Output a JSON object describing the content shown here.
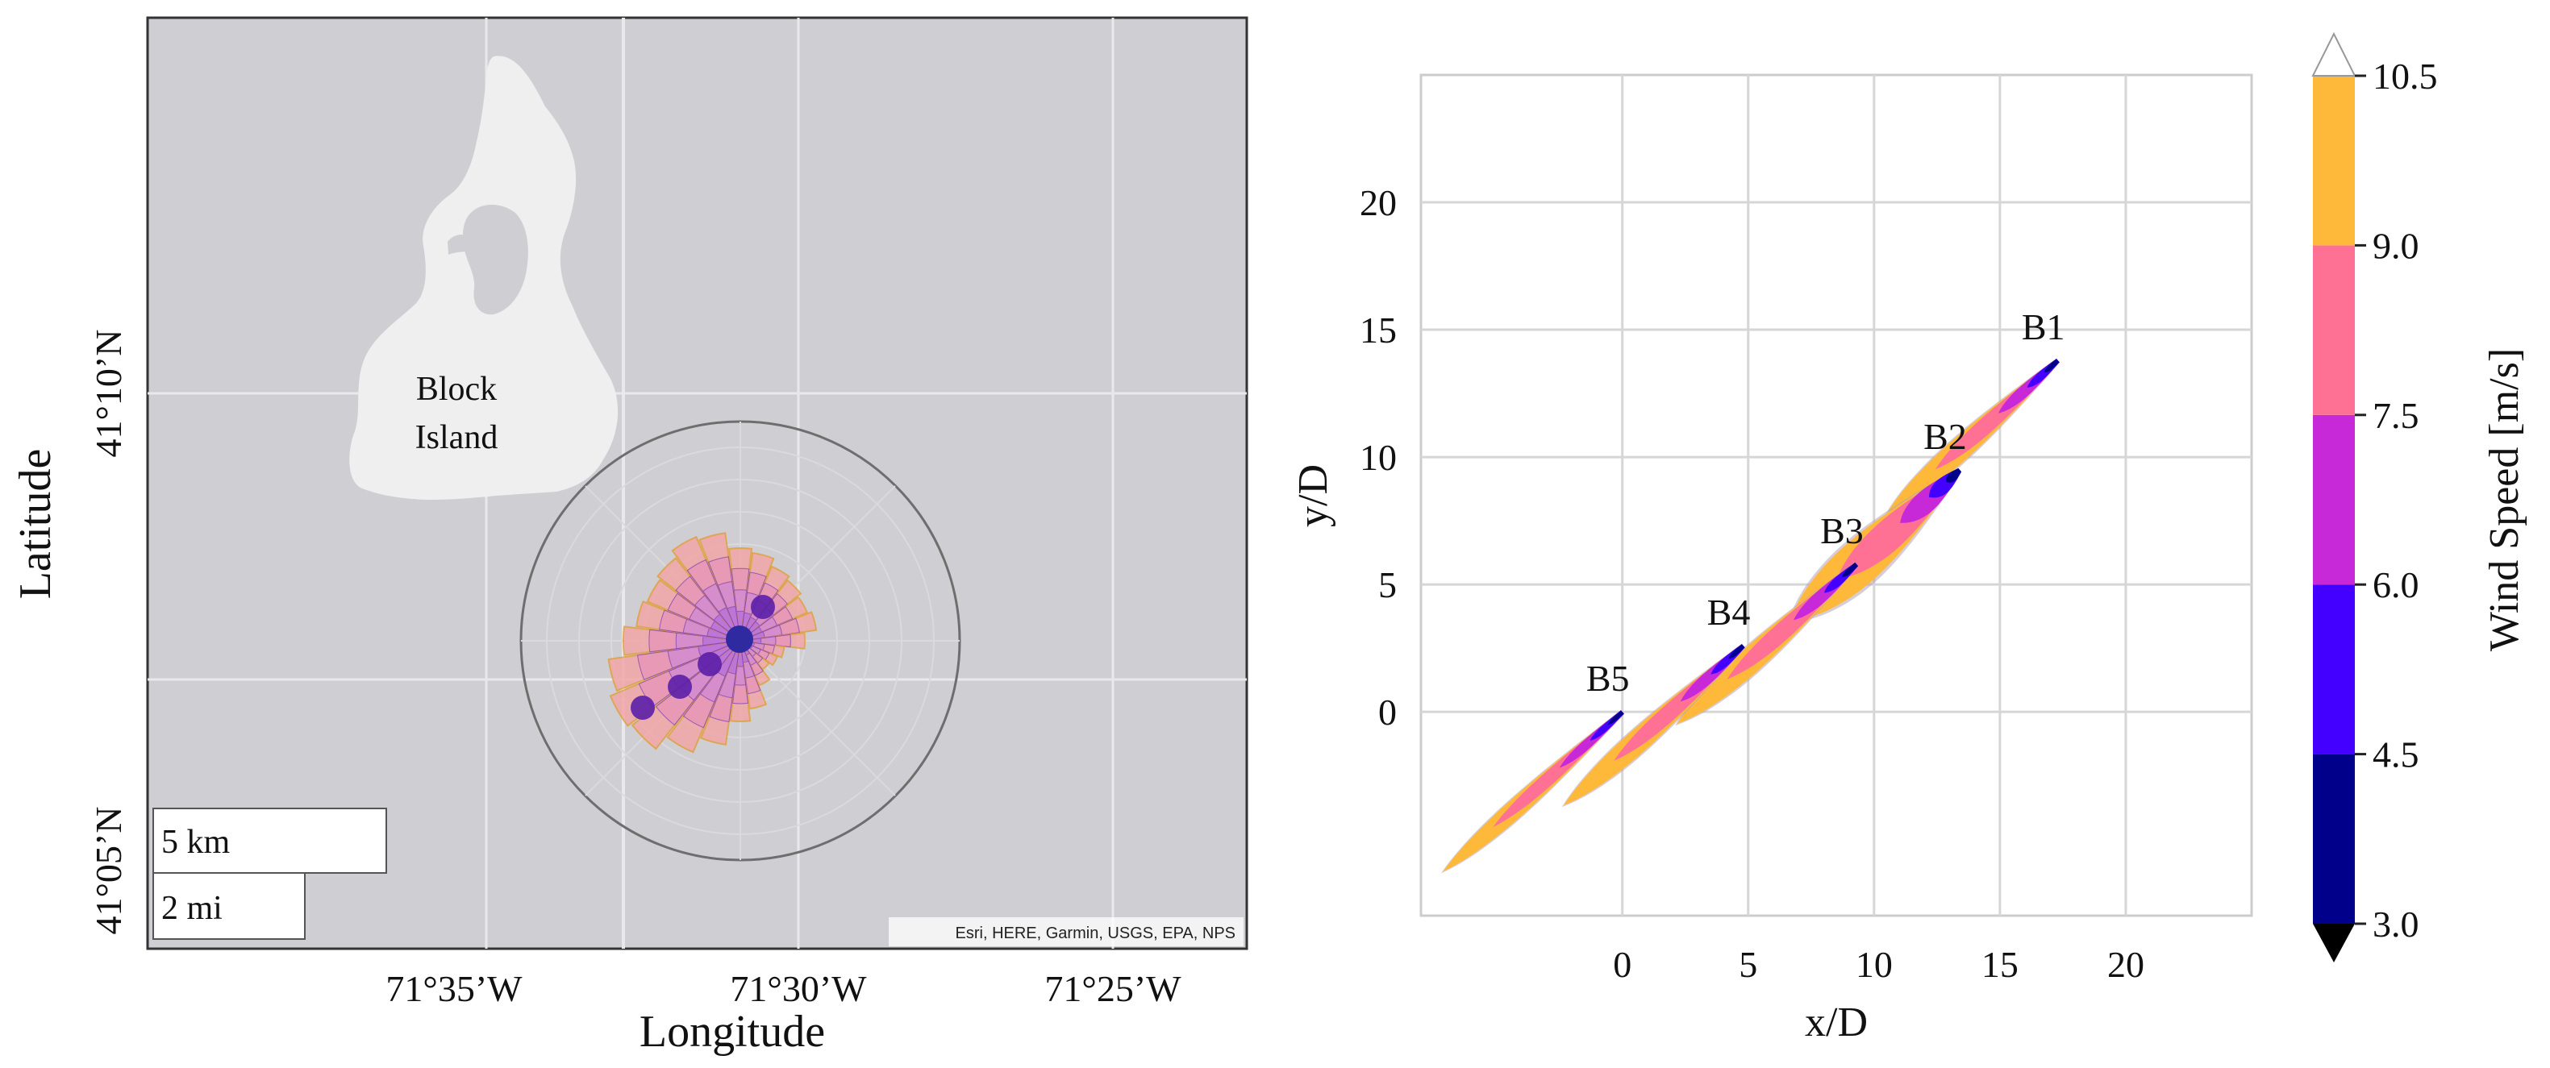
{
  "map": {
    "island_label_line1": "Block",
    "island_label_line2": "Island",
    "xlabel": "Longitude",
    "ylabel": "Latitude",
    "lon_ticks": [
      "71°35’W",
      "71°30’W",
      "71°25’W"
    ],
    "lat_ticks": [
      "41°10’N",
      "41°05’N"
    ],
    "scale_km": "5 km",
    "scale_mi": "2 mi",
    "attribution": "Esri, HERE, Garmin, USGS, EPA, NPS",
    "colors": {
      "water": "#cfced3",
      "land": "#efefef",
      "gridline": "#e9e9ec",
      "turbine": "#5c1fa8"
    }
  },
  "chart_data": {
    "type": "contour",
    "title": "",
    "xlabel": "x/D",
    "ylabel": "y/D",
    "xlim": [
      -8,
      25
    ],
    "ylim": [
      -8,
      25
    ],
    "xticks": [
      0,
      5,
      10,
      15,
      20
    ],
    "yticks": [
      0,
      5,
      10,
      15,
      20
    ],
    "turbines": [
      {
        "name": "B1",
        "x": 17.3,
        "y": 13.8
      },
      {
        "name": "B2",
        "x": 13.4,
        "y": 9.5
      },
      {
        "name": "B3",
        "x": 9.3,
        "y": 5.8
      },
      {
        "name": "B4",
        "x": 4.8,
        "y": 2.6
      },
      {
        "name": "B5",
        "x": 0.0,
        "y": 0.0
      }
    ],
    "colorbar": {
      "label": "Wind Speed [m/s]",
      "levels": [
        3.0,
        4.5,
        6.0,
        7.5,
        9.0,
        10.5
      ],
      "tick_labels": [
        "3.0",
        "4.5",
        "6.0",
        "7.5",
        "9.0",
        "10.5"
      ],
      "colors": [
        "#00008b",
        "#4400ff",
        "#c728d8",
        "#ff7194",
        "#ffb93a"
      ],
      "extend_low": "#000000",
      "extend_high": "#ffffff"
    }
  }
}
